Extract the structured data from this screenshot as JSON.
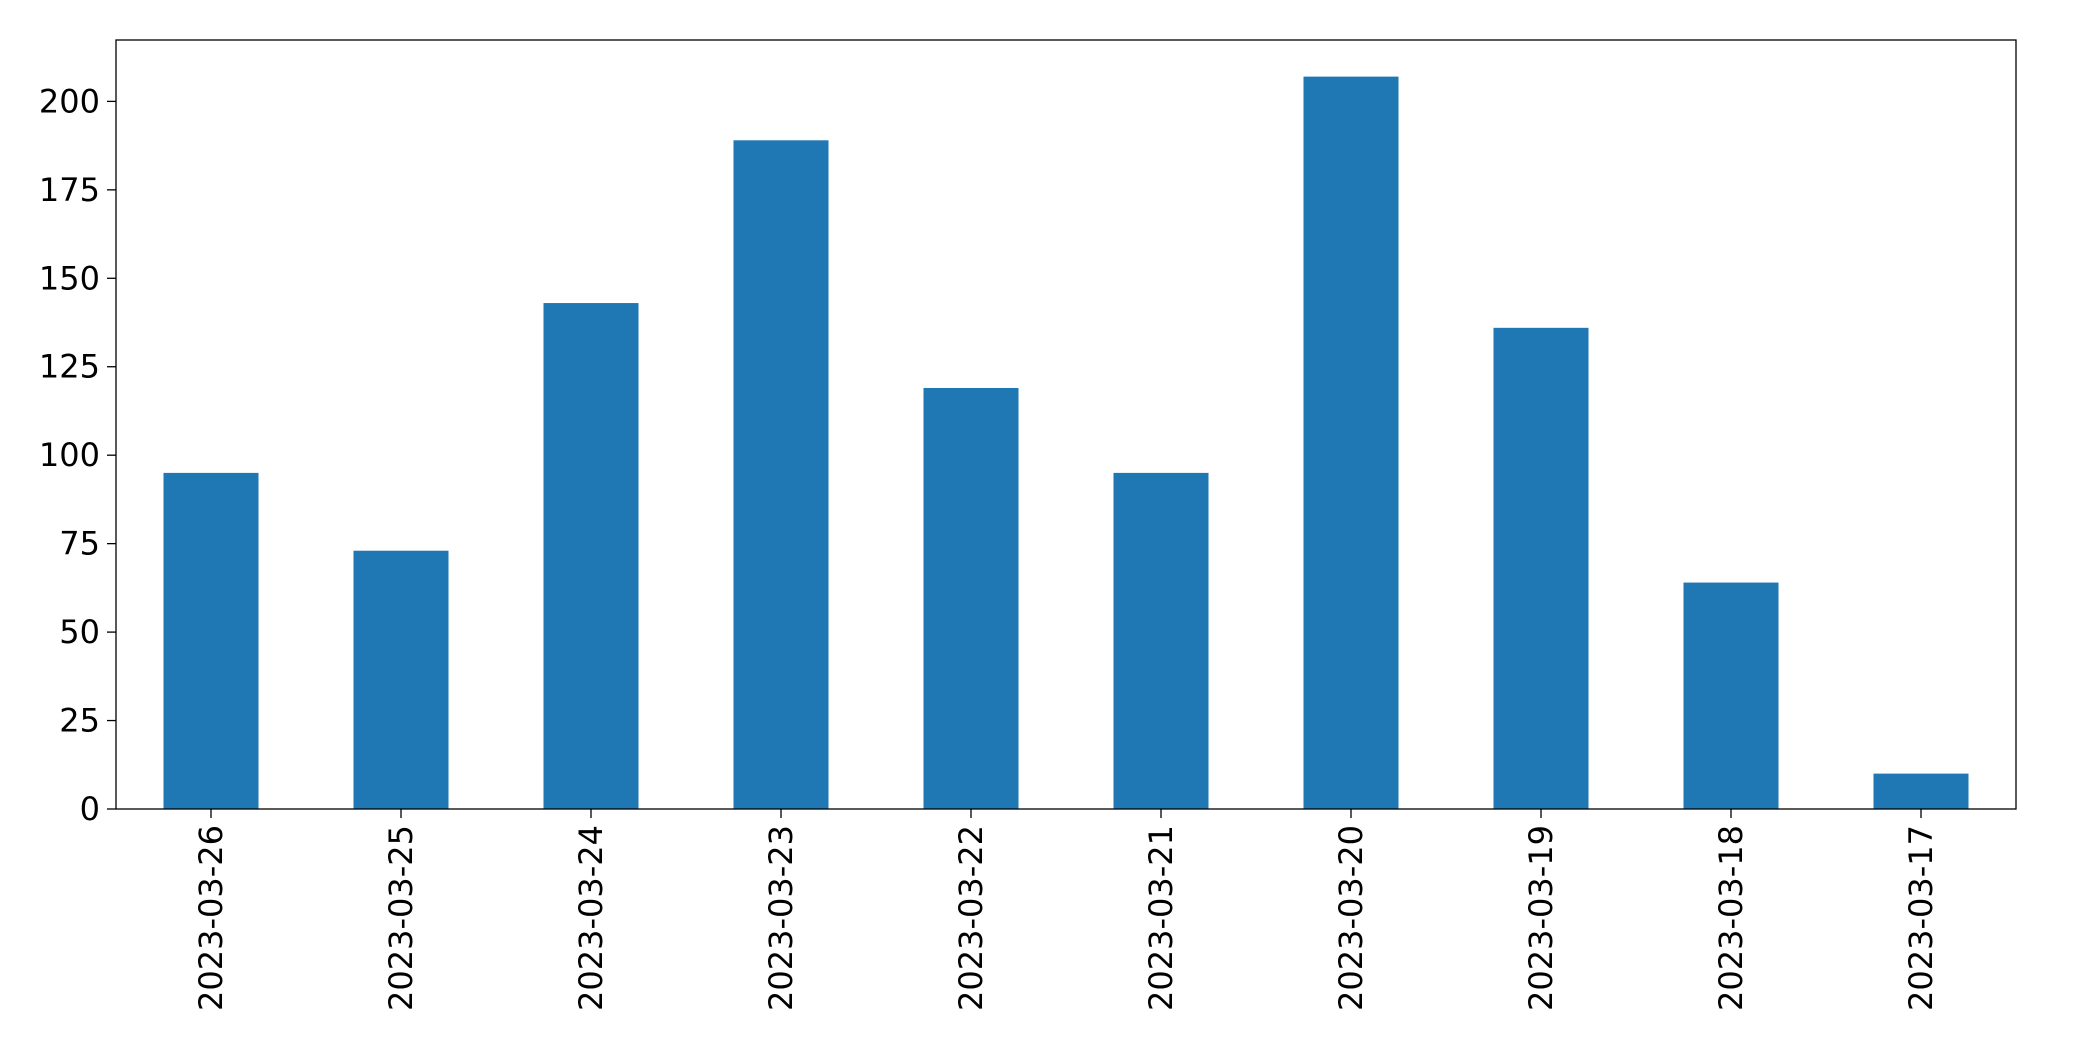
{
  "chart_data": {
    "type": "bar",
    "categories": [
      "2023-03-26",
      "2023-03-25",
      "2023-03-24",
      "2023-03-23",
      "2023-03-22",
      "2023-03-21",
      "2023-03-20",
      "2023-03-19",
      "2023-03-18",
      "2023-03-17"
    ],
    "values": [
      95,
      73,
      143,
      189,
      119,
      95,
      207,
      136,
      64,
      10
    ],
    "color": "#1f77b4",
    "ylim": [
      0,
      217.35
    ],
    "yticks": [
      0,
      25,
      50,
      75,
      100,
      125,
      150,
      175,
      200
    ],
    "grid": false
  }
}
